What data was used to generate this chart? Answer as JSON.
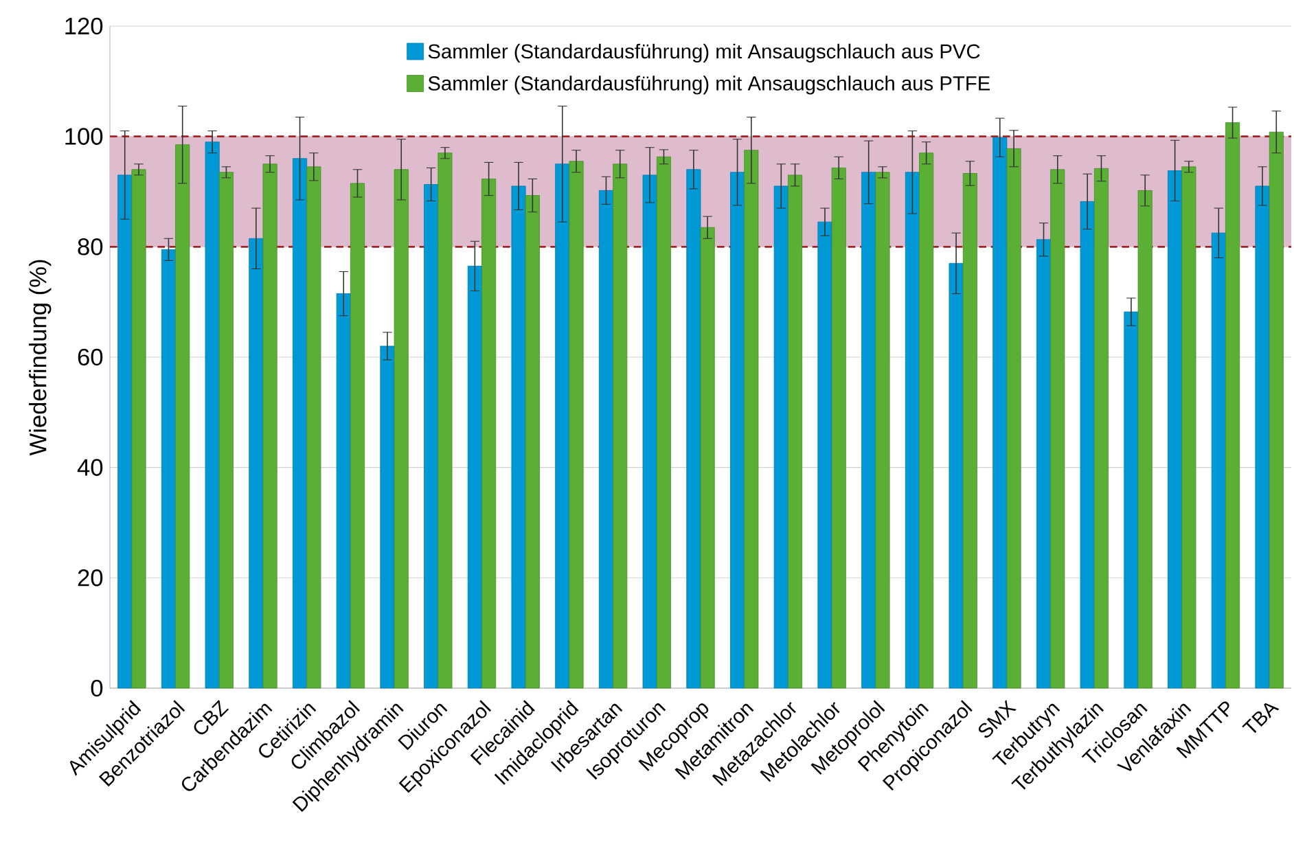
{
  "chart_data": {
    "type": "bar",
    "ylabel": "Wiederfindung (%)",
    "categories": [
      "Amisulprid",
      "Benzotriazol",
      "CBZ",
      "Carbendazim",
      "Cetirizin",
      "Climbazol",
      "Diphenhydramin",
      "Diuron",
      "Epoxiconazol",
      "Flecainid",
      "Imidacloprid",
      "Irbesartan",
      "Isoproturon",
      "Mecoprop",
      "Metamitron",
      "Metazachlor",
      "Metolachlor",
      "Metoprolol",
      "Phenytoin",
      "Propiconazol",
      "SMX",
      "Terbutryn",
      "Terbuthylazin",
      "Triclosan",
      "Venlafaxin",
      "MMTTP",
      "TBA"
    ],
    "series": [
      {
        "name": "Sammler (Standardausführung) mit Ansaugschlauch aus PVC",
        "color": "#0099d6",
        "values": [
          93,
          79.5,
          99,
          81.5,
          96,
          71.5,
          62,
          91.3,
          76.5,
          91,
          95,
          90.2,
          93,
          94,
          93.5,
          91,
          84.5,
          93.5,
          93.5,
          77,
          99.8,
          81.3,
          88.2,
          68.2,
          93.8,
          82.5,
          91
        ],
        "errors": [
          8,
          2,
          2,
          5.5,
          7.5,
          4,
          2.5,
          3,
          4.5,
          4.3,
          10.5,
          2.5,
          5,
          3.5,
          6,
          4,
          2.5,
          5.7,
          7.5,
          5.5,
          3.5,
          3,
          5,
          2.5,
          5.5,
          4.5,
          3.5
        ]
      },
      {
        "name": "Sammler (Standardausführung) mit Ansaugschlauch aus PTFE",
        "color": "#5aaf34",
        "values": [
          94,
          98.5,
          93.5,
          95,
          94.5,
          91.5,
          94,
          97,
          92.3,
          89.3,
          95.5,
          95,
          96.3,
          83.5,
          97.5,
          93,
          94.3,
          93.5,
          97,
          93.3,
          97.8,
          94,
          94.2,
          90.2,
          94.5,
          102.5,
          100.8
        ],
        "errors": [
          1,
          7,
          1,
          1.5,
          2.5,
          2.5,
          5.5,
          1,
          3,
          3,
          2,
          2.5,
          1.3,
          2,
          6,
          2,
          2,
          1,
          2,
          2.2,
          3.3,
          2.5,
          2.3,
          2.8,
          1,
          2.8,
          3.8
        ]
      }
    ],
    "ylim": [
      0,
      120
    ],
    "yticks": [
      0,
      20,
      40,
      60,
      80,
      100,
      120
    ],
    "grid": "y",
    "legend": "top",
    "bands": [
      {
        "axis": "y",
        "from": 80,
        "to": 100,
        "color": "#dfbccd"
      }
    ]
  }
}
